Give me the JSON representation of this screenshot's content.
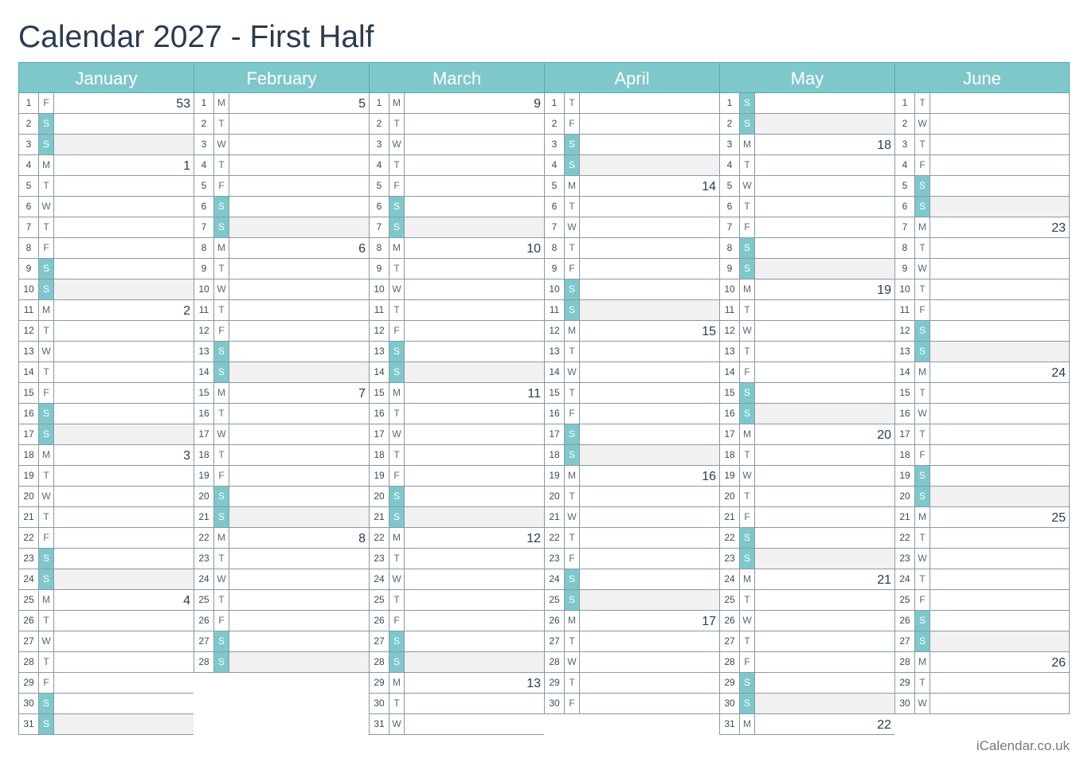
{
  "title": "Calendar 2027 - First Half",
  "footer": "iCalendar.co.uk",
  "colors": {
    "accent": "#7ec8cb",
    "weekend_shade": "#f1f1f1",
    "text": "#2a3b4d"
  },
  "months": [
    {
      "name": "January",
      "days": [
        {
          "d": "1",
          "w": "F",
          "wk": "53"
        },
        {
          "d": "2",
          "w": "S"
        },
        {
          "d": "3",
          "w": "S"
        },
        {
          "d": "4",
          "w": "M",
          "wk": "1"
        },
        {
          "d": "5",
          "w": "T"
        },
        {
          "d": "6",
          "w": "W"
        },
        {
          "d": "7",
          "w": "T"
        },
        {
          "d": "8",
          "w": "F"
        },
        {
          "d": "9",
          "w": "S"
        },
        {
          "d": "10",
          "w": "S"
        },
        {
          "d": "11",
          "w": "M",
          "wk": "2"
        },
        {
          "d": "12",
          "w": "T"
        },
        {
          "d": "13",
          "w": "W"
        },
        {
          "d": "14",
          "w": "T"
        },
        {
          "d": "15",
          "w": "F"
        },
        {
          "d": "16",
          "w": "S"
        },
        {
          "d": "17",
          "w": "S"
        },
        {
          "d": "18",
          "w": "M",
          "wk": "3"
        },
        {
          "d": "19",
          "w": "T"
        },
        {
          "d": "20",
          "w": "W"
        },
        {
          "d": "21",
          "w": "T"
        },
        {
          "d": "22",
          "w": "F"
        },
        {
          "d": "23",
          "w": "S"
        },
        {
          "d": "24",
          "w": "S"
        },
        {
          "d": "25",
          "w": "M",
          "wk": "4"
        },
        {
          "d": "26",
          "w": "T"
        },
        {
          "d": "27",
          "w": "W"
        },
        {
          "d": "28",
          "w": "T"
        },
        {
          "d": "29",
          "w": "F"
        },
        {
          "d": "30",
          "w": "S"
        },
        {
          "d": "31",
          "w": "S"
        }
      ]
    },
    {
      "name": "February",
      "days": [
        {
          "d": "1",
          "w": "M",
          "wk": "5"
        },
        {
          "d": "2",
          "w": "T"
        },
        {
          "d": "3",
          "w": "W"
        },
        {
          "d": "4",
          "w": "T"
        },
        {
          "d": "5",
          "w": "F"
        },
        {
          "d": "6",
          "w": "S"
        },
        {
          "d": "7",
          "w": "S"
        },
        {
          "d": "8",
          "w": "M",
          "wk": "6"
        },
        {
          "d": "9",
          "w": "T"
        },
        {
          "d": "10",
          "w": "W"
        },
        {
          "d": "11",
          "w": "T"
        },
        {
          "d": "12",
          "w": "F"
        },
        {
          "d": "13",
          "w": "S"
        },
        {
          "d": "14",
          "w": "S"
        },
        {
          "d": "15",
          "w": "M",
          "wk": "7"
        },
        {
          "d": "16",
          "w": "T"
        },
        {
          "d": "17",
          "w": "W"
        },
        {
          "d": "18",
          "w": "T"
        },
        {
          "d": "19",
          "w": "F"
        },
        {
          "d": "20",
          "w": "S"
        },
        {
          "d": "21",
          "w": "S"
        },
        {
          "d": "22",
          "w": "M",
          "wk": "8"
        },
        {
          "d": "23",
          "w": "T"
        },
        {
          "d": "24",
          "w": "W"
        },
        {
          "d": "25",
          "w": "T"
        },
        {
          "d": "26",
          "w": "F"
        },
        {
          "d": "27",
          "w": "S"
        },
        {
          "d": "28",
          "w": "S"
        }
      ]
    },
    {
      "name": "March",
      "days": [
        {
          "d": "1",
          "w": "M",
          "wk": "9"
        },
        {
          "d": "2",
          "w": "T"
        },
        {
          "d": "3",
          "w": "W"
        },
        {
          "d": "4",
          "w": "T"
        },
        {
          "d": "5",
          "w": "F"
        },
        {
          "d": "6",
          "w": "S"
        },
        {
          "d": "7",
          "w": "S"
        },
        {
          "d": "8",
          "w": "M",
          "wk": "10"
        },
        {
          "d": "9",
          "w": "T"
        },
        {
          "d": "10",
          "w": "W"
        },
        {
          "d": "11",
          "w": "T"
        },
        {
          "d": "12",
          "w": "F"
        },
        {
          "d": "13",
          "w": "S"
        },
        {
          "d": "14",
          "w": "S"
        },
        {
          "d": "15",
          "w": "M",
          "wk": "11"
        },
        {
          "d": "16",
          "w": "T"
        },
        {
          "d": "17",
          "w": "W"
        },
        {
          "d": "18",
          "w": "T"
        },
        {
          "d": "19",
          "w": "F"
        },
        {
          "d": "20",
          "w": "S"
        },
        {
          "d": "21",
          "w": "S"
        },
        {
          "d": "22",
          "w": "M",
          "wk": "12"
        },
        {
          "d": "23",
          "w": "T"
        },
        {
          "d": "24",
          "w": "W"
        },
        {
          "d": "25",
          "w": "T"
        },
        {
          "d": "26",
          "w": "F"
        },
        {
          "d": "27",
          "w": "S"
        },
        {
          "d": "28",
          "w": "S"
        },
        {
          "d": "29",
          "w": "M",
          "wk": "13"
        },
        {
          "d": "30",
          "w": "T"
        },
        {
          "d": "31",
          "w": "W"
        }
      ]
    },
    {
      "name": "April",
      "days": [
        {
          "d": "1",
          "w": "T"
        },
        {
          "d": "2",
          "w": "F"
        },
        {
          "d": "3",
          "w": "S"
        },
        {
          "d": "4",
          "w": "S"
        },
        {
          "d": "5",
          "w": "M",
          "wk": "14"
        },
        {
          "d": "6",
          "w": "T"
        },
        {
          "d": "7",
          "w": "W"
        },
        {
          "d": "8",
          "w": "T"
        },
        {
          "d": "9",
          "w": "F"
        },
        {
          "d": "10",
          "w": "S"
        },
        {
          "d": "11",
          "w": "S"
        },
        {
          "d": "12",
          "w": "M",
          "wk": "15"
        },
        {
          "d": "13",
          "w": "T"
        },
        {
          "d": "14",
          "w": "W"
        },
        {
          "d": "15",
          "w": "T"
        },
        {
          "d": "16",
          "w": "F"
        },
        {
          "d": "17",
          "w": "S"
        },
        {
          "d": "18",
          "w": "S"
        },
        {
          "d": "19",
          "w": "M",
          "wk": "16"
        },
        {
          "d": "20",
          "w": "T"
        },
        {
          "d": "21",
          "w": "W"
        },
        {
          "d": "22",
          "w": "T"
        },
        {
          "d": "23",
          "w": "F"
        },
        {
          "d": "24",
          "w": "S"
        },
        {
          "d": "25",
          "w": "S"
        },
        {
          "d": "26",
          "w": "M",
          "wk": "17"
        },
        {
          "d": "27",
          "w": "T"
        },
        {
          "d": "28",
          "w": "W"
        },
        {
          "d": "29",
          "w": "T"
        },
        {
          "d": "30",
          "w": "F"
        }
      ]
    },
    {
      "name": "May",
      "days": [
        {
          "d": "1",
          "w": "S"
        },
        {
          "d": "2",
          "w": "S"
        },
        {
          "d": "3",
          "w": "M",
          "wk": "18"
        },
        {
          "d": "4",
          "w": "T"
        },
        {
          "d": "5",
          "w": "W"
        },
        {
          "d": "6",
          "w": "T"
        },
        {
          "d": "7",
          "w": "F"
        },
        {
          "d": "8",
          "w": "S"
        },
        {
          "d": "9",
          "w": "S"
        },
        {
          "d": "10",
          "w": "M",
          "wk": "19"
        },
        {
          "d": "11",
          "w": "T"
        },
        {
          "d": "12",
          "w": "W"
        },
        {
          "d": "13",
          "w": "T"
        },
        {
          "d": "14",
          "w": "F"
        },
        {
          "d": "15",
          "w": "S"
        },
        {
          "d": "16",
          "w": "S"
        },
        {
          "d": "17",
          "w": "M",
          "wk": "20"
        },
        {
          "d": "18",
          "w": "T"
        },
        {
          "d": "19",
          "w": "W"
        },
        {
          "d": "20",
          "w": "T"
        },
        {
          "d": "21",
          "w": "F"
        },
        {
          "d": "22",
          "w": "S"
        },
        {
          "d": "23",
          "w": "S"
        },
        {
          "d": "24",
          "w": "M",
          "wk": "21"
        },
        {
          "d": "25",
          "w": "T"
        },
        {
          "d": "26",
          "w": "W"
        },
        {
          "d": "27",
          "w": "T"
        },
        {
          "d": "28",
          "w": "F"
        },
        {
          "d": "29",
          "w": "S"
        },
        {
          "d": "30",
          "w": "S"
        },
        {
          "d": "31",
          "w": "M",
          "wk": "22"
        }
      ]
    },
    {
      "name": "June",
      "days": [
        {
          "d": "1",
          "w": "T"
        },
        {
          "d": "2",
          "w": "W"
        },
        {
          "d": "3",
          "w": "T"
        },
        {
          "d": "4",
          "w": "F"
        },
        {
          "d": "5",
          "w": "S"
        },
        {
          "d": "6",
          "w": "S"
        },
        {
          "d": "7",
          "w": "M",
          "wk": "23"
        },
        {
          "d": "8",
          "w": "T"
        },
        {
          "d": "9",
          "w": "W"
        },
        {
          "d": "10",
          "w": "T"
        },
        {
          "d": "11",
          "w": "F"
        },
        {
          "d": "12",
          "w": "S"
        },
        {
          "d": "13",
          "w": "S"
        },
        {
          "d": "14",
          "w": "M",
          "wk": "24"
        },
        {
          "d": "15",
          "w": "T"
        },
        {
          "d": "16",
          "w": "W"
        },
        {
          "d": "17",
          "w": "T"
        },
        {
          "d": "18",
          "w": "F"
        },
        {
          "d": "19",
          "w": "S"
        },
        {
          "d": "20",
          "w": "S"
        },
        {
          "d": "21",
          "w": "M",
          "wk": "25"
        },
        {
          "d": "22",
          "w": "T"
        },
        {
          "d": "23",
          "w": "W"
        },
        {
          "d": "24",
          "w": "T"
        },
        {
          "d": "25",
          "w": "F"
        },
        {
          "d": "26",
          "w": "S"
        },
        {
          "d": "27",
          "w": "S"
        },
        {
          "d": "28",
          "w": "M",
          "wk": "26"
        },
        {
          "d": "29",
          "w": "T"
        },
        {
          "d": "30",
          "w": "W"
        }
      ]
    }
  ]
}
